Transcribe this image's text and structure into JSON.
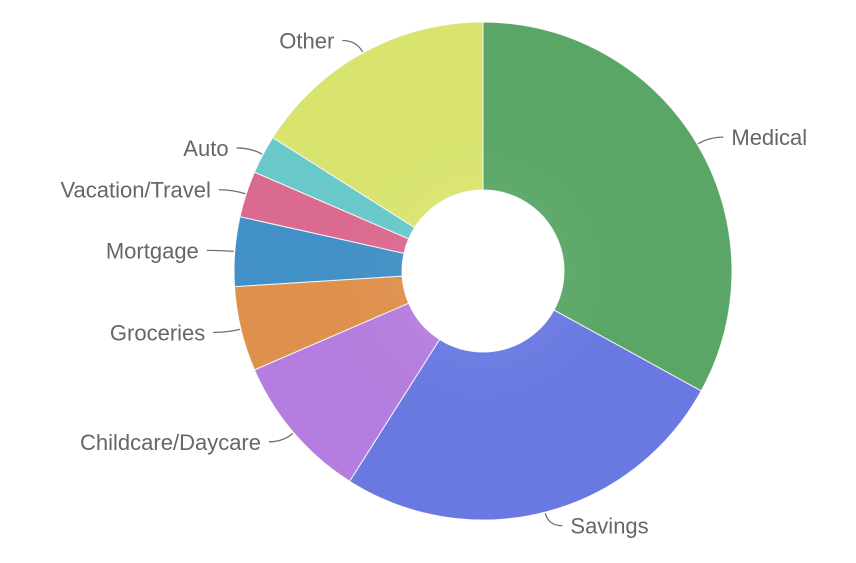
{
  "chart_data": {
    "type": "pie",
    "donut": true,
    "legend": "none",
    "grid": false,
    "slices": [
      {
        "label": "Medical",
        "value": 33,
        "color": "#5ead6b"
      },
      {
        "label": "Savings",
        "value": 26,
        "color": "#6d7eea"
      },
      {
        "label": "Childcare/Daycare",
        "value": 9.5,
        "color": "#bc82e8"
      },
      {
        "label": "Groceries",
        "value": 5.5,
        "color": "#e8964f"
      },
      {
        "label": "Mortgage",
        "value": 4.5,
        "color": "#4496cf"
      },
      {
        "label": "Vacation/Travel",
        "value": 3,
        "color": "#e46e96"
      },
      {
        "label": "Auto",
        "value": 2.5,
        "color": "#6dd0d2"
      },
      {
        "label": "Other",
        "value": 16,
        "color": "#e1ed73"
      }
    ]
  }
}
